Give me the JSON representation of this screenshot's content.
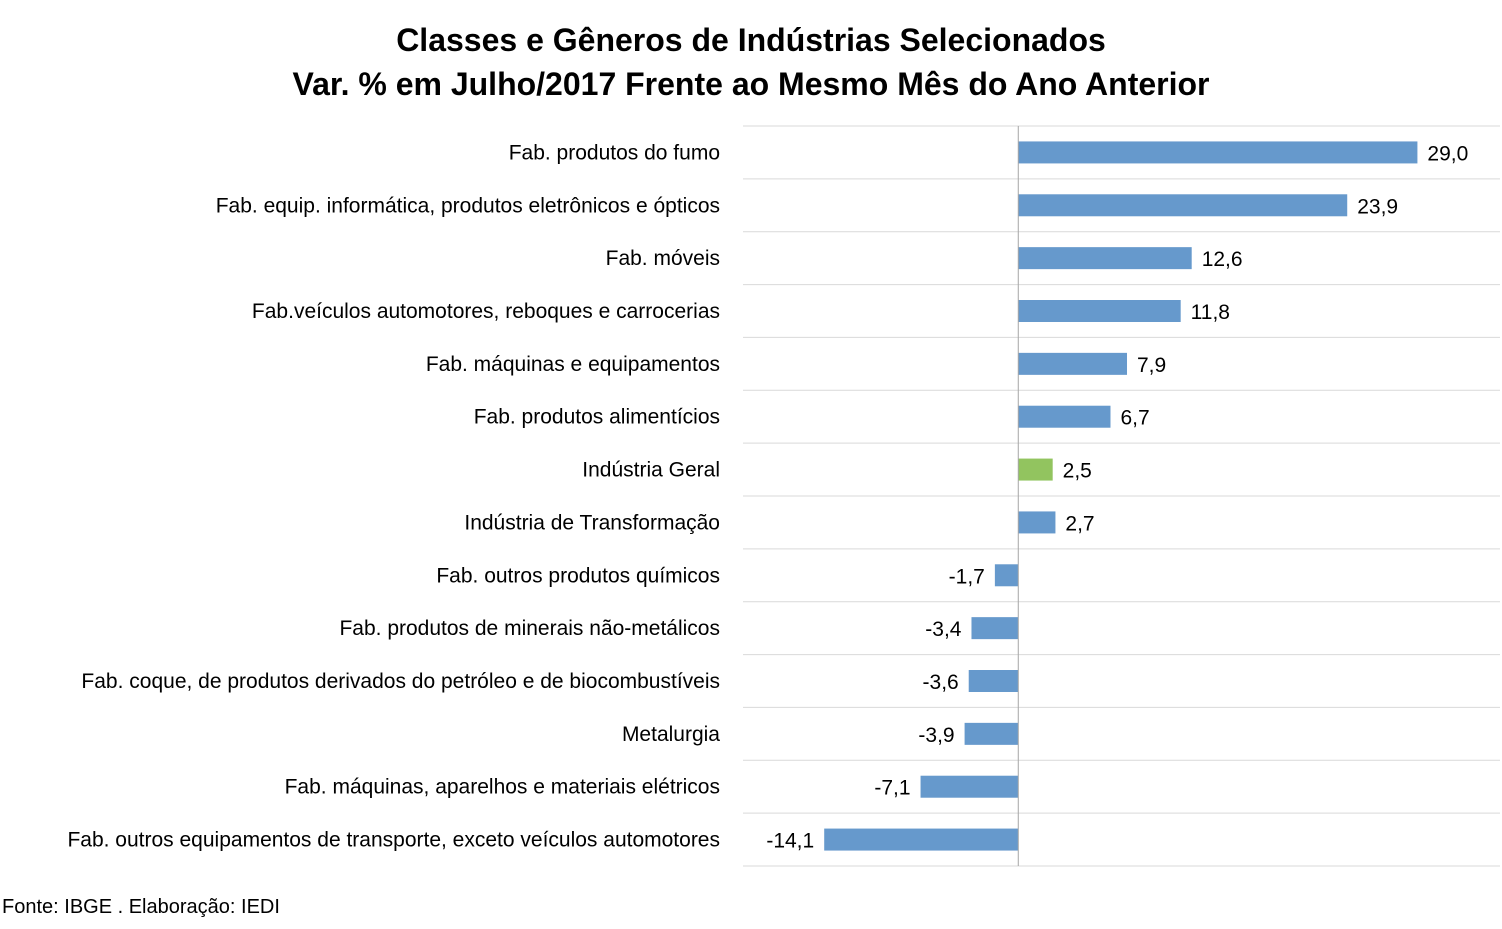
{
  "chart_data": {
    "type": "bar",
    "orientation": "horizontal",
    "title": "Classes e Gêneros de Indústrias Selecionados",
    "subtitle": "Var. % em Julho/2017 Frente ao Mesmo Mês do Ano Anterior",
    "categories": [
      "Fab. produtos do fumo",
      "Fab. equip. informática, produtos eletrônicos e ópticos",
      "Fab. móveis",
      "Fab.veículos automotores, reboques e carrocerias",
      "Fab. máquinas e equipamentos",
      "Fab. produtos alimentícios",
      "Indústria Geral",
      "Indústria de Transformação",
      "Fab. outros produtos químicos",
      "Fab. produtos de minerais não-metálicos",
      "Fab. coque, de produtos derivados do petróleo e de biocombustíveis",
      "Metalurgia",
      "Fab. máquinas, aparelhos e materiais elétricos",
      "Fab. outros equipamentos de transporte, exceto veículos automotores"
    ],
    "values": [
      29.0,
      23.9,
      12.6,
      11.8,
      7.9,
      6.7,
      2.5,
      2.7,
      -1.7,
      -3.4,
      -3.6,
      -3.9,
      -7.1,
      -14.1
    ],
    "value_labels": [
      "29,0",
      "23,9",
      "12,6",
      "11,8",
      "7,9",
      "6,7",
      "2,5",
      "2,7",
      "-1,7",
      "-3,4",
      "-3,6",
      "-3,9",
      "-7,1",
      "-14,1"
    ],
    "xlim": [
      -20,
      35
    ],
    "grid": "horizontal",
    "legend": "none",
    "bar_color": "#6699cc",
    "highlight_color": "#92c45f",
    "highlight_category": "Indústria Geral"
  },
  "footer": {
    "source": "Fonte: IBGE . Elaboração: IEDI"
  }
}
